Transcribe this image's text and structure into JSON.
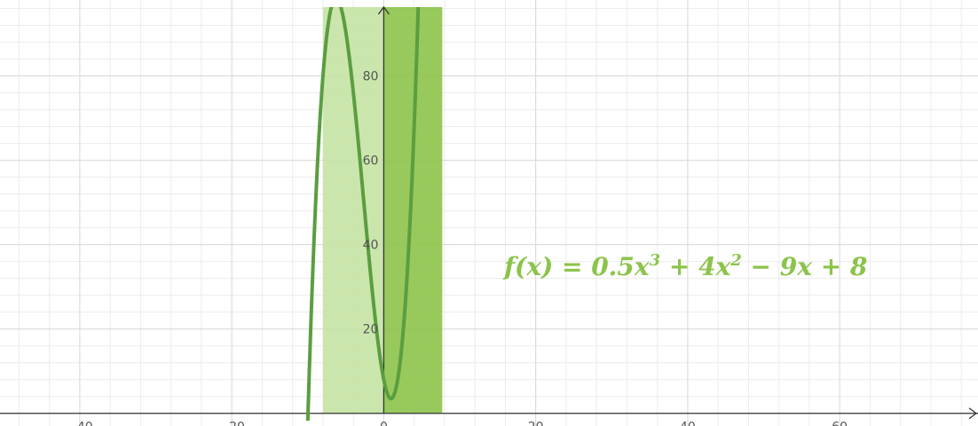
{
  "chart_data": {
    "type": "line",
    "title": "",
    "xlabel": "",
    "ylabel": "",
    "xlim": [
      -50.5,
      78.2
    ],
    "ylim": [
      -3,
      98
    ],
    "x_ticks": [
      "−40",
      "−20",
      "0",
      "20",
      "40",
      "60"
    ],
    "x_tick_values": [
      -40,
      -20,
      0,
      20,
      40,
      60
    ],
    "y_ticks": [
      "20",
      "40",
      "60",
      "80"
    ],
    "y_tick_values": [
      20,
      40,
      60,
      80
    ],
    "grid": true,
    "series": [
      {
        "function": "0.5x^3 + 4x^2 - 9x + 8",
        "coefficients": [
          0.5,
          4,
          -9,
          8
        ],
        "x_range": [
          -10.0,
          7.6
        ],
        "color": "#5a9e3f"
      }
    ],
    "shaded_regions": [
      {
        "x_from": -8,
        "x_to": 0,
        "color": "#c5e3a3"
      },
      {
        "x_from": 0,
        "x_to": 7.7,
        "color": "#8cc34a"
      }
    ],
    "annotation": {
      "parts": [
        "f(x) = 0.5x",
        "3",
        " + 4x",
        "2",
        " − 9x + 8"
      ]
    }
  }
}
